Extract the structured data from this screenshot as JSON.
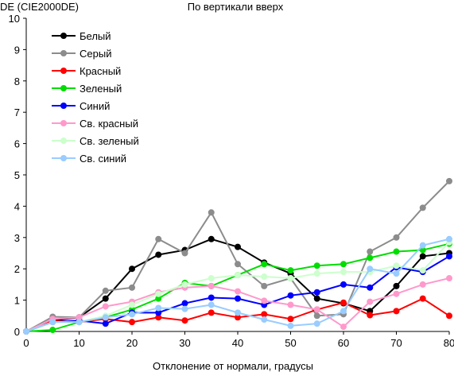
{
  "chart_data": {
    "type": "line",
    "title": "По вертикали вверх",
    "ylabel": "DE (CIE2000DE)",
    "xlabel": "Отклонение от нормали, градусы",
    "xlim": [
      0,
      80
    ],
    "ylim": [
      0,
      10
    ],
    "xticks": [
      0,
      10,
      20,
      30,
      40,
      50,
      60,
      70,
      80
    ],
    "yticks": [
      0,
      1,
      2,
      3,
      4,
      5,
      6,
      7,
      8,
      9,
      10
    ],
    "grid": false,
    "legend_position": "top-left",
    "x": [
      0,
      5,
      10,
      15,
      20,
      25,
      30,
      35,
      40,
      45,
      50,
      55,
      60,
      65,
      70,
      75,
      80
    ],
    "series": [
      {
        "name": "Белый",
        "color": "#000000",
        "values": [
          0,
          0.35,
          0.45,
          1.05,
          2.0,
          2.45,
          2.6,
          2.95,
          2.7,
          2.2,
          1.85,
          1.05,
          0.9,
          0.65,
          1.45,
          2.4,
          2.5
        ]
      },
      {
        "name": "Серый",
        "color": "#8c8c8c",
        "values": [
          0,
          0.47,
          0.45,
          1.3,
          1.4,
          2.95,
          2.5,
          3.8,
          2.15,
          1.45,
          1.7,
          0.5,
          0.55,
          2.55,
          3.0,
          3.95,
          4.8
        ]
      },
      {
        "name": "Красный",
        "color": "#ff0000",
        "values": [
          0,
          0.35,
          0.3,
          0.4,
          0.3,
          0.45,
          0.35,
          0.6,
          0.45,
          0.55,
          0.4,
          0.7,
          0.92,
          0.52,
          0.65,
          1.05,
          0.5
        ]
      },
      {
        "name": "Зеленый",
        "color": "#00dd00",
        "values": [
          0,
          0.05,
          0.3,
          0.45,
          0.7,
          1.05,
          1.55,
          1.45,
          1.8,
          2.15,
          1.95,
          2.1,
          2.15,
          2.35,
          2.55,
          2.6,
          2.8
        ]
      },
      {
        "name": "Синий",
        "color": "#0000ff",
        "values": [
          0,
          0.3,
          0.35,
          0.25,
          0.6,
          0.6,
          0.9,
          1.08,
          1.05,
          0.85,
          1.15,
          1.25,
          1.5,
          1.4,
          2.05,
          1.9,
          2.4
        ]
      },
      {
        "name": "Св. красный",
        "color": "#ff99cc",
        "values": [
          0,
          0.4,
          0.45,
          0.8,
          0.95,
          1.25,
          1.4,
          1.45,
          1.28,
          0.98,
          0.85,
          0.7,
          0.15,
          0.95,
          1.2,
          1.5,
          1.7
        ]
      },
      {
        "name": "Св. зеленый",
        "color": "#ccffcc",
        "values": [
          0,
          0.3,
          0.3,
          0.5,
          0.85,
          1.2,
          1.5,
          1.7,
          1.8,
          1.75,
          1.7,
          1.85,
          1.9,
          1.9,
          2.1,
          1.95,
          2.85
        ]
      },
      {
        "name": "Св. синий",
        "color": "#99ccff",
        "values": [
          0,
          0.3,
          0.3,
          0.45,
          0.55,
          0.75,
          0.72,
          0.85,
          0.6,
          0.38,
          0.18,
          0.25,
          0.65,
          2.0,
          1.85,
          2.75,
          2.95
        ]
      }
    ]
  }
}
